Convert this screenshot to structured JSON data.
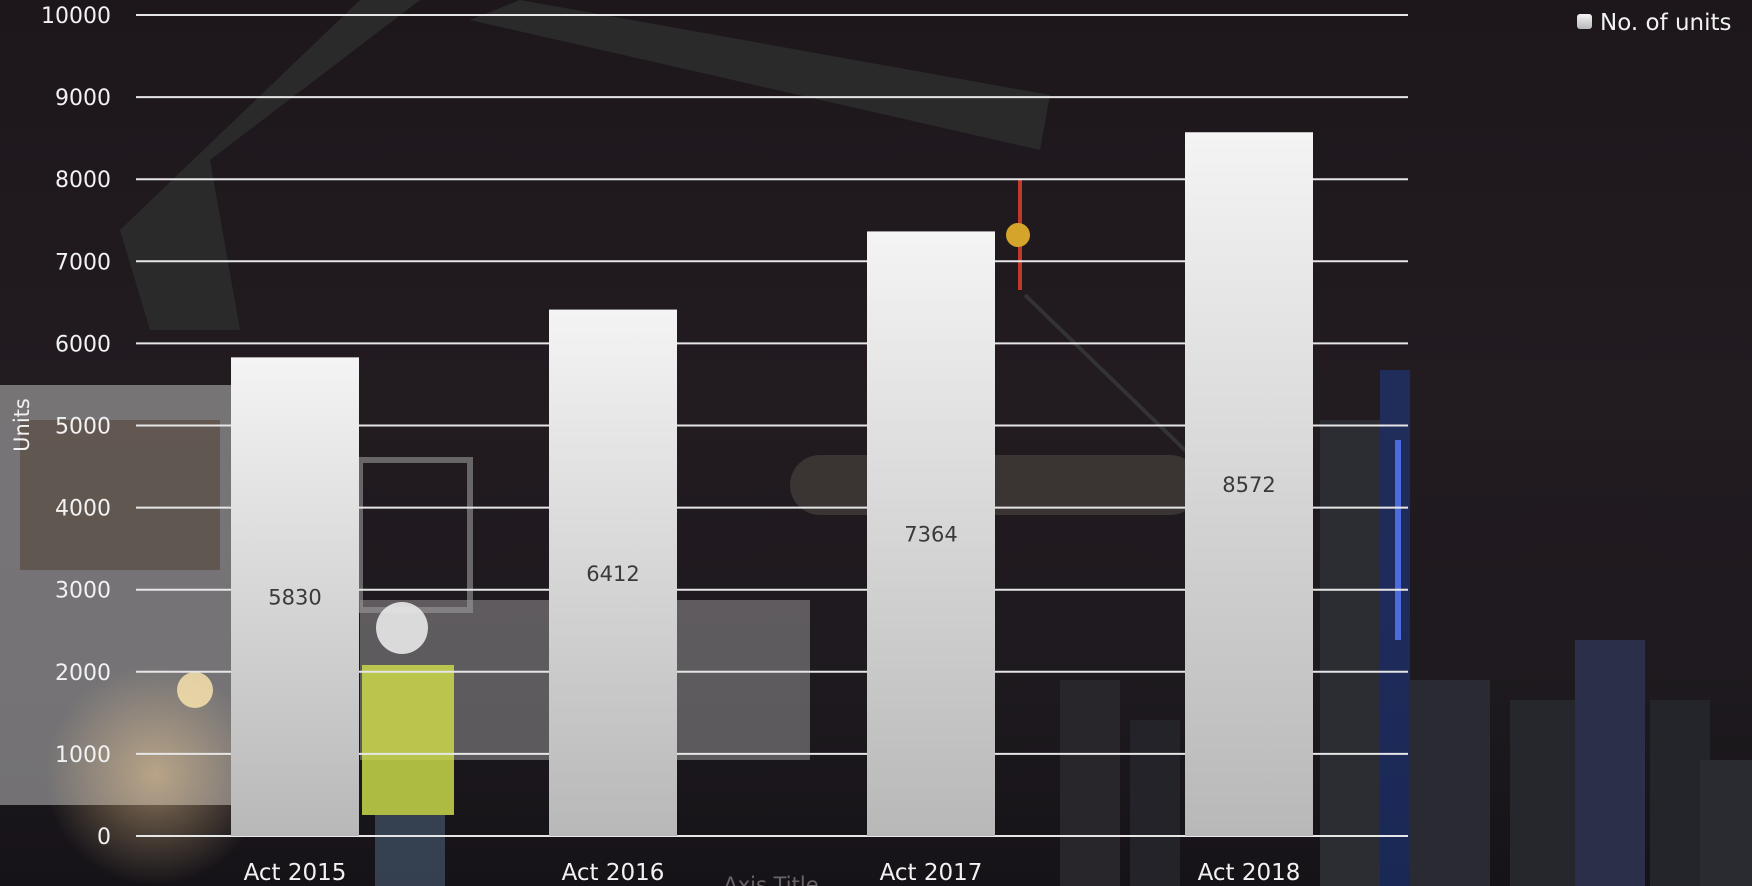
{
  "chart_data": {
    "type": "bar",
    "categories": [
      "Act 2015",
      "Act 2016",
      "Act 2017",
      "Act 2018"
    ],
    "series": [
      {
        "name": "No. of units",
        "values": [
          5830,
          6412,
          7364,
          8572
        ]
      }
    ],
    "ylabel": "Units",
    "xlabel": "Axis Title",
    "ylim": [
      0,
      10000
    ],
    "yticks": [
      0,
      1000,
      2000,
      3000,
      4000,
      5000,
      6000,
      7000,
      8000,
      9000,
      10000
    ],
    "grid": true,
    "legend_position": "top-right",
    "data_labels": true,
    "colors": {
      "bar_top": "#f4f4f4",
      "bar_bottom": "#b8b8b8",
      "gridline": "#e6e6e6",
      "text": "#f2f2f2",
      "data_label": "#3a3a3a"
    }
  }
}
